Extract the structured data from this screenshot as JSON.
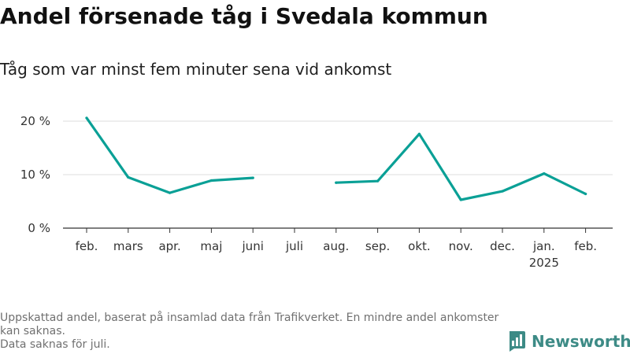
{
  "title": "Andel försenade tåg i Svedala kommun",
  "subtitle": "Tåg som var minst fem minuter sena vid ankomst",
  "footnotes": [
    "Uppskattad andel, baserat på insamlad data från Trafikverket. En mindre andel ankomster kan saknas.",
    "Data saknas för juli."
  ],
  "brand": {
    "name": "Newsworthy",
    "color": "#3d8b86"
  },
  "colors": {
    "line": "#0aa096",
    "grid": "#dddddd",
    "axis": "#333333"
  },
  "chart_data": {
    "type": "line",
    "title": "Andel försenade tåg i Svedala kommun",
    "subtitle": "Tåg som var minst fem minuter sena vid ankomst",
    "xlabel": "",
    "ylabel": "",
    "categories": [
      "feb.",
      "mars",
      "apr.",
      "maj",
      "juni",
      "juli",
      "aug.",
      "sep.",
      "okt.",
      "nov.",
      "dec.",
      "jan.",
      "feb."
    ],
    "category_sublabels": [
      "",
      "",
      "",
      "",
      "",
      "",
      "",
      "",
      "",
      "",
      "",
      "2025",
      ""
    ],
    "values": [
      20.6,
      9.5,
      6.6,
      8.9,
      9.4,
      null,
      8.5,
      8.8,
      17.6,
      5.3,
      6.9,
      10.2,
      6.4
    ],
    "ylim": [
      0,
      20
    ],
    "yticks": [
      0,
      10,
      20
    ],
    "ytick_labels": [
      "0 %",
      "10 %",
      "20 %"
    ],
    "grid": true,
    "legend": "none"
  }
}
